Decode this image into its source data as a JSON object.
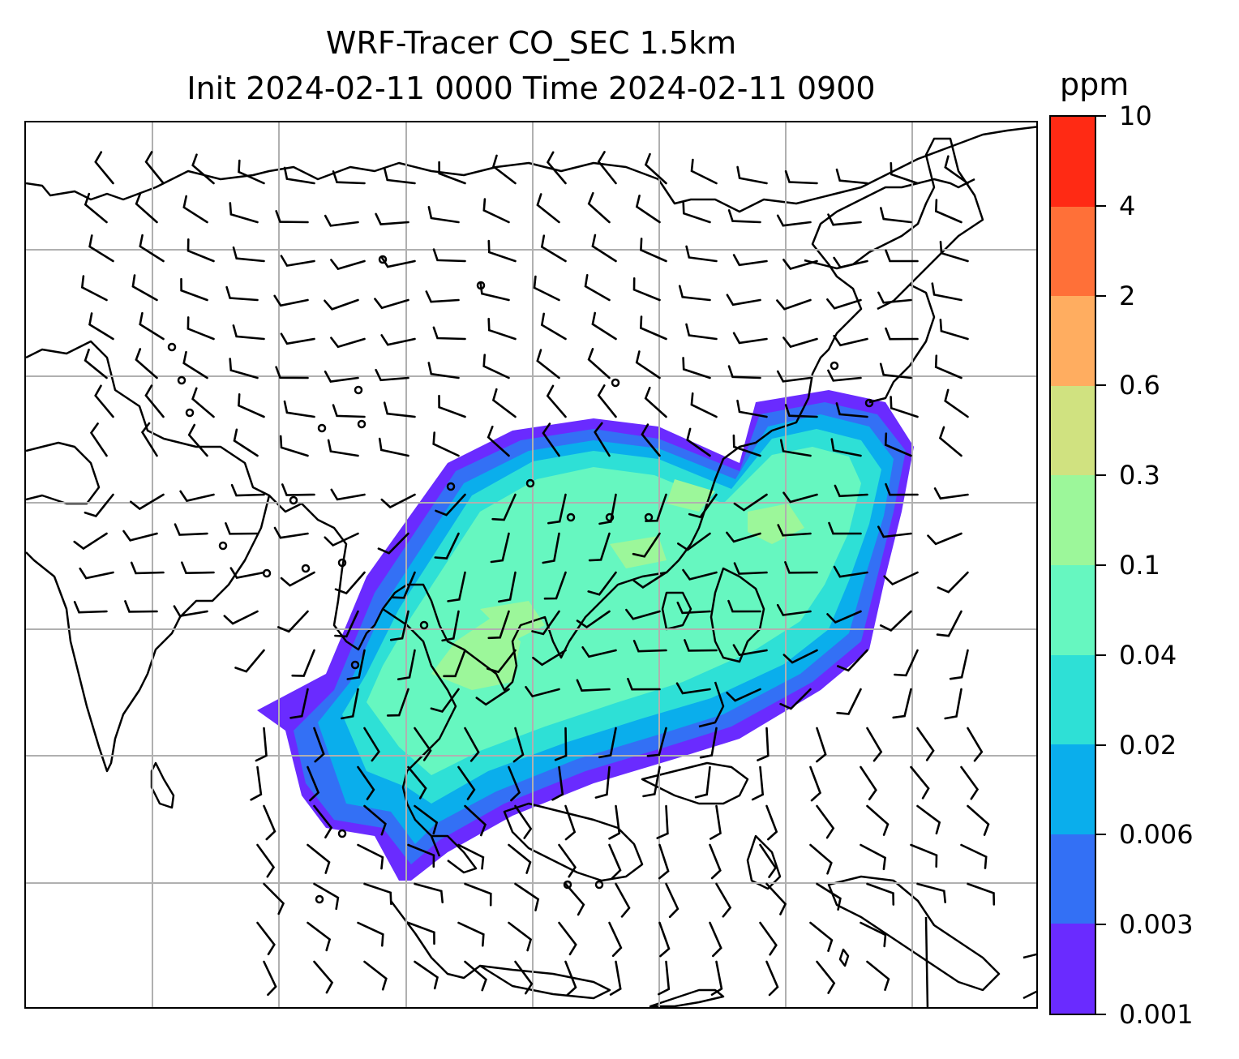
{
  "title": {
    "line1": "WRF-Tracer CO_SEC 1.5km",
    "line2": "Init 2024-02-11 0000 Time 2024-02-11 0900"
  },
  "colorbar": {
    "units": "ppm",
    "ticks": [
      "10",
      "4",
      "2",
      "0.6",
      "0.3",
      "0.1",
      "0.04",
      "0.02",
      "0.006",
      "0.003",
      "0.001"
    ],
    "colors": [
      "#ff2a14",
      "#ff7038",
      "#ffad60",
      "#d0e280",
      "#9cf79a",
      "#66f7c0",
      "#2ee0d6",
      "#0aaeec",
      "#3370f5",
      "#6a2bff"
    ]
  },
  "map": {
    "variable": "CO_SEC tracer concentration",
    "level": "1.5km",
    "overlay": "wind barbs",
    "gridlines": true
  }
}
